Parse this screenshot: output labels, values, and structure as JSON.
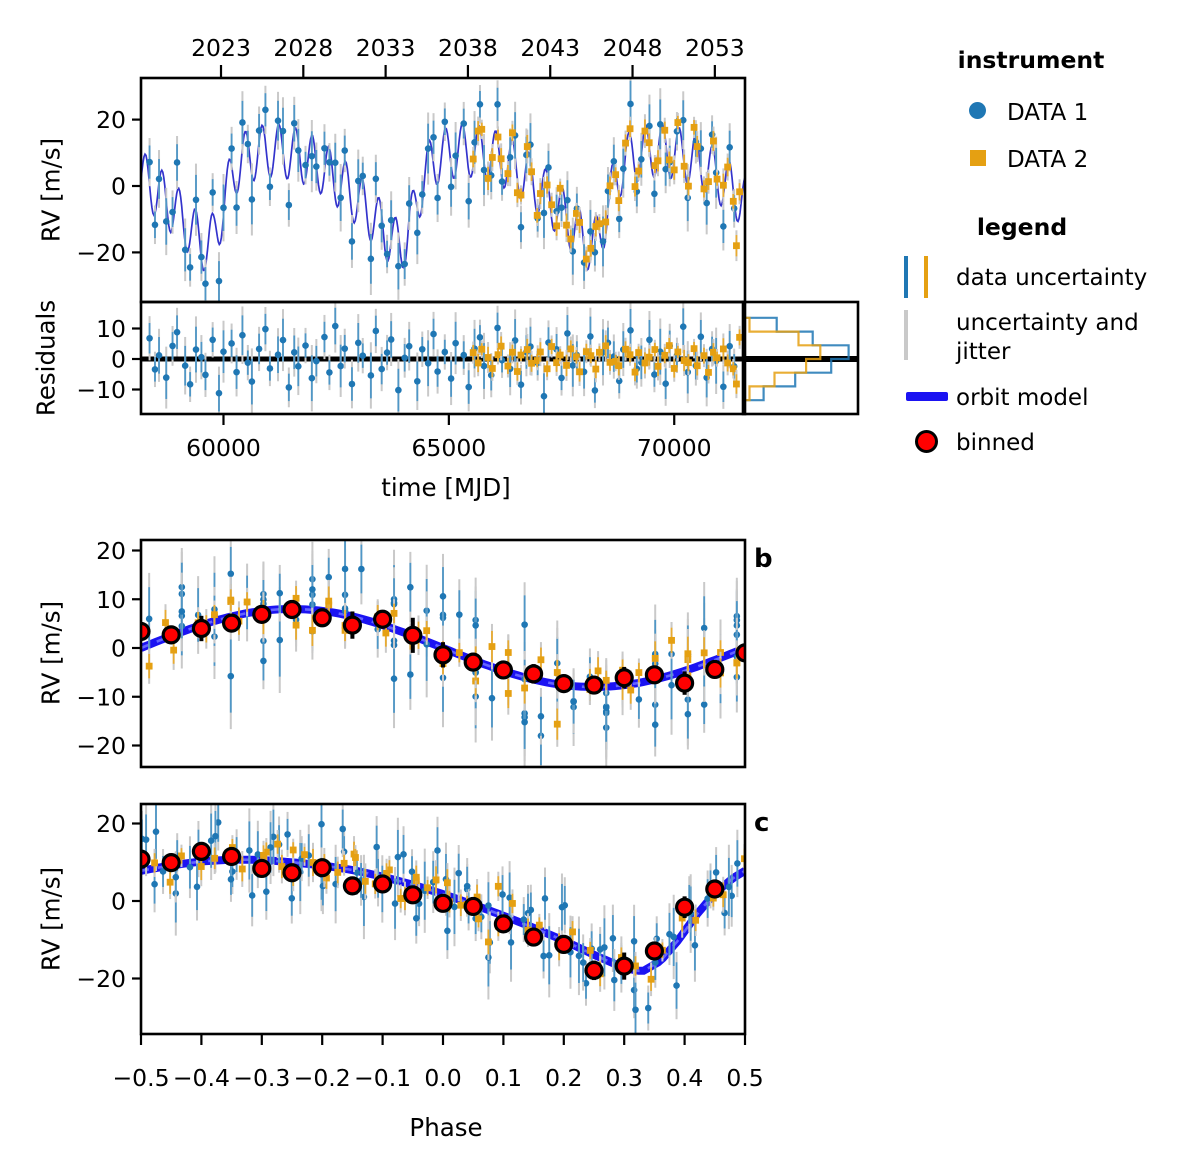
{
  "colors": {
    "data1": "#1f77b4",
    "data1_bar": "#4f97c7",
    "data2": "#e5a012",
    "data2_bar": "#e9ab30",
    "jitter": "#c9c9c9",
    "model_line": "#3333cc",
    "model_thick": "#1b13f2",
    "model_dash": "#6464ff",
    "binned_fill": "#ff0000",
    "binned_edge": "#000000",
    "zero_line": "#000000"
  },
  "legend": {
    "instrument_title": "instrument",
    "instruments": [
      {
        "label": "DATA 1",
        "marker": "circle",
        "color": "#1f77b4"
      },
      {
        "label": "DATA 2",
        "marker": "square",
        "color": "#e5a012"
      }
    ],
    "legend_title": "legend",
    "entries": [
      {
        "label": "data uncertainty",
        "symbol": "two-vertical-bars"
      },
      {
        "label": "uncertainty and jitter",
        "symbol": "gray-vertical-bar"
      },
      {
        "label": "orbit model",
        "symbol": "thick-blue-line"
      },
      {
        "label": "binned",
        "symbol": "red-circle"
      }
    ]
  },
  "chart_data": [
    {
      "id": "a",
      "type": "scatter",
      "description": "RV time series with orbit model",
      "ylabel": "RV [m/s]",
      "xlim": [
        58170,
        71570
      ],
      "ylim": [
        -34.9,
        32.5
      ],
      "y_ticks": [
        20,
        0,
        -20
      ],
      "y_tick_labels": [
        "20",
        "0",
        "−20"
      ],
      "top_axis": {
        "labels": [
          "2023",
          "2028",
          "2033",
          "2038",
          "2043",
          "2048",
          "2053"
        ],
        "mjd": [
          59945,
          61771,
          63597,
          65423,
          67249,
          69075,
          70901
        ]
      },
      "model": {
        "short_period": 370,
        "short_amplitude": 8,
        "short_t0": 58360,
        "long_period": 4270,
        "long_t0": 58249,
        "long_shape": [
          [
            -0.5,
            7.8
          ],
          [
            -0.45,
            9.2
          ],
          [
            -0.4,
            10.2
          ],
          [
            -0.35,
            10.7
          ],
          [
            -0.3,
            10.6
          ],
          [
            -0.25,
            10.0
          ],
          [
            -0.2,
            9.2
          ],
          [
            -0.15,
            8.0
          ],
          [
            -0.1,
            6.3
          ],
          [
            -0.05,
            4.2
          ],
          [
            0.0,
            1.8
          ],
          [
            0.05,
            -0.9
          ],
          [
            0.1,
            -3.8
          ],
          [
            0.15,
            -6.9
          ],
          [
            0.2,
            -10.2
          ],
          [
            0.25,
            -13.9
          ],
          [
            0.3,
            -17.3
          ],
          [
            0.33,
            -18.2
          ],
          [
            0.36,
            -15.5
          ],
          [
            0.39,
            -10.0
          ],
          [
            0.42,
            -3.5
          ],
          [
            0.45,
            2.0
          ],
          [
            0.48,
            5.9
          ],
          [
            0.5,
            7.8
          ]
        ]
      },
      "series": [
        {
          "name": "DATA 1",
          "marker": "circle",
          "t": [
            58360,
            58480,
            58570,
            58730,
            58870,
            58970,
            59150,
            59260,
            59390,
            59510,
            59600,
            59760,
            59900,
            60000,
            60180,
            60290,
            60420,
            60540,
            60630,
            60790,
            60930,
            61030,
            61210,
            61320,
            61450,
            61570,
            61660,
            61820,
            61960,
            62060,
            62240,
            62350,
            62480,
            62600,
            62690,
            62850,
            62990,
            63090,
            63270,
            63380,
            63510,
            63630,
            63720,
            63880,
            64020,
            64120,
            64300,
            64410,
            64540,
            64660,
            64750,
            64910,
            65050,
            65150,
            65330,
            65440,
            65570,
            65690,
            65780,
            65940,
            66080,
            66180,
            66360,
            66470,
            66600,
            66720,
            66810,
            66970,
            67110,
            67210,
            67390,
            67500,
            67630,
            67750,
            67840,
            68000,
            68140,
            68240,
            68420,
            68530,
            68660,
            68780,
            68870,
            69030,
            69170,
            69270,
            69450,
            69560,
            69690,
            69810,
            69900,
            70060,
            70200,
            70300,
            70480,
            70590,
            70720,
            70840,
            70930,
            71090,
            71230,
            71330
          ],
          "resid": [
            6.8,
            -3.4,
            1.2,
            -6.1,
            4.3,
            8.8,
            -2.2,
            -8.3,
            3.1,
            0.6,
            -5.2,
            6.3,
            -11.2,
            2.4,
            5.1,
            -4.3,
            7.8,
            -1.2,
            -7.4,
            3.3,
            9.8,
            -3.1,
            1.4,
            6.2,
            -9.3,
            2.2,
            -2.4,
            4.4,
            -6.3,
            -0.7,
            7.2,
            -4.4,
            10.8,
            -2.3,
            3.4,
            -8.2,
            5.3,
            1.1,
            -5.4,
            9.2,
            -3.3,
            2.1,
            6.4,
            -10.2,
            0.4,
            4.2,
            -7.3,
            3.2,
            -1.4,
            8.2,
            -4.1,
            2.3,
            -6.4,
            5.2,
            1.3,
            -9.2,
            3.4,
            7.1,
            -2.3,
            -5.3,
            10.2,
            -0.4,
            -3.2,
            6.1,
            -8.4,
            2.3,
            4.1,
            -1.3,
            -12.2,
            5.4,
            3.2,
            -6.2,
            8.4,
            -2.1,
            1.3,
            -4.2,
            7.4,
            -10.3,
            2.2,
            5.3,
            0.8,
            -7.2,
            3.1,
            9.4,
            -3.2,
            -1.1,
            6.3,
            -5.1,
            2.4,
            -8.1,
            4.3,
            1.2,
            10.6,
            -4.3,
            -2.2,
            7.3,
            -6.1,
            3.3,
            -0.6,
            -9.1,
            4.2,
            -2.4
          ],
          "err_cycle": [
            5,
            4,
            6,
            7,
            4.5,
            5.5,
            6.5,
            4,
            7.5,
            5
          ]
        },
        {
          "name": "DATA 2",
          "marker": "square",
          "t": [
            65540,
            65650,
            65730,
            65870,
            65965,
            66090,
            66160,
            66310,
            66410,
            66520,
            66600,
            66740,
            66835,
            66960,
            67030,
            67180,
            67280,
            67390,
            67470,
            67610,
            67705,
            67830,
            67900,
            68050,
            68150,
            68260,
            68340,
            68480,
            68575,
            68700,
            68770,
            68920,
            69020,
            69130,
            69210,
            69350,
            69445,
            69570,
            69640,
            69790,
            69890,
            70000,
            70080,
            70220,
            70315,
            70440,
            70510,
            70660,
            70760,
            70870,
            70950,
            71090,
            71185,
            71310,
            71380,
            71450
          ],
          "resid": [
            2.1,
            -1.3,
            3.2,
            0.5,
            -3.1,
            1.4,
            4.2,
            -2.3,
            2.2,
            -4.1,
            1.3,
            3.1,
            -1.4,
            -0.5,
            2.3,
            -3.2,
            4.1,
            -1.2,
            1.3,
            -2.1,
            3.3,
            0.7,
            -4.2,
            2.4,
            1.1,
            -3.3,
            2.2,
            4.3,
            -1.1,
            -0.8,
            -2.2,
            3.2,
            1.4,
            -4.3,
            2.1,
            -1.3,
            0.6,
            3.1,
            -2.4,
            1.2,
            4.4,
            -3.1,
            2.3,
            -0.5,
            -1.2,
            3.4,
            -2.2,
            1.1,
            -4.4,
            2.2,
            0.4,
            3.3,
            -1.3,
            -3.2,
            -8.2,
            7.1
          ],
          "err_cycle": [
            2.5,
            3,
            2,
            3.5,
            2.8,
            2.2,
            3.2,
            2.6
          ]
        }
      ]
    },
    {
      "id": "r",
      "type": "scatter",
      "description": "Residuals vs time",
      "ylabel": "Residuals",
      "xlabel": "time [MJD]",
      "x_ticks": [
        60000,
        65000,
        70000
      ],
      "x_tick_labels": [
        "60000",
        "65000",
        "70000"
      ],
      "y_ticks": [
        10,
        0,
        -10
      ],
      "y_tick_labels": [
        "10",
        "0",
        "−10"
      ],
      "ylim": [
        -18.0,
        18.7
      ],
      "zero_line": true
    },
    {
      "id": "h",
      "type": "histogram",
      "description": "Residual distribution histogram",
      "orientation": "horizontal",
      "bin_edges": [
        13.5,
        9,
        4.5,
        0,
        -4.5,
        -9,
        -13.5
      ],
      "series": [
        {
          "name": "DATA 1",
          "fractions": [
            0.3,
            0.63,
            0.96,
            0.8,
            0.47,
            0.18
          ]
        },
        {
          "name": "DATA 2",
          "fractions": [
            0.05,
            0.5,
            0.7,
            0.57,
            0.28,
            0.05
          ]
        }
      ],
      "zero_line": true
    },
    {
      "id": "b",
      "type": "scatter",
      "panel_label": "b",
      "description": "Phase-folded RV, short-period planet",
      "ylabel": "RV [m/s]",
      "xlim": [
        -0.5,
        0.5
      ],
      "ylim": [
        -24.4,
        22.2
      ],
      "y_ticks": [
        20,
        10,
        0,
        -10,
        -20
      ],
      "y_tick_labels": [
        "20",
        "10",
        "0",
        "−10",
        "−20"
      ],
      "fold": "short",
      "binned": {
        "phase": [
          -0.5,
          -0.45,
          -0.4,
          -0.35,
          -0.3,
          -0.25,
          -0.2,
          -0.15,
          -0.1,
          -0.05,
          0.0,
          0.05,
          0.1,
          0.15,
          0.2,
          0.25,
          0.3,
          0.35,
          0.4,
          0.45,
          0.5
        ],
        "rv": [
          3.4,
          2.7,
          4.0,
          5.1,
          6.9,
          7.9,
          6.2,
          4.7,
          5.9,
          2.6,
          -1.4,
          -2.9,
          -4.5,
          -5.3,
          -7.3,
          -7.6,
          -6.1,
          -5.5,
          -7.2,
          -4.4,
          -1.0
        ],
        "err": [
          1.2,
          1.2,
          2.6,
          1.2,
          1.2,
          1.2,
          1.2,
          2.8,
          1.2,
          3.6,
          2.6,
          1.2,
          1.2,
          2.0,
          1.2,
          1.2,
          2.2,
          1.2,
          2.4,
          1.2,
          1.2
        ]
      }
    },
    {
      "id": "c",
      "type": "scatter",
      "panel_label": "c",
      "description": "Phase-folded RV, long-period planet",
      "ylabel": "RV [m/s]",
      "xlabel": "Phase",
      "xlim": [
        -0.5,
        0.5
      ],
      "ylim": [
        -34.3,
        25.0
      ],
      "y_ticks": [
        20,
        0,
        -20
      ],
      "y_tick_labels": [
        "20",
        "0",
        "−20"
      ],
      "x_ticks": [
        -0.5,
        -0.4,
        -0.3,
        -0.2,
        -0.1,
        0.0,
        0.1,
        0.2,
        0.3,
        0.4,
        0.5
      ],
      "x_tick_labels": [
        "−0.5",
        "−0.4",
        "−0.3",
        "−0.2",
        "−0.1",
        "0.0",
        "0.1",
        "0.2",
        "0.3",
        "0.4",
        "0.5"
      ],
      "fold": "long",
      "binned": {
        "phase": [
          -0.5,
          -0.45,
          -0.4,
          -0.35,
          -0.3,
          -0.25,
          -0.2,
          -0.15,
          -0.1,
          -0.05,
          0.0,
          0.05,
          0.1,
          0.15,
          0.2,
          0.25,
          0.3,
          0.35,
          0.4,
          0.45
        ],
        "rv": [
          10.8,
          9.9,
          12.8,
          11.5,
          8.4,
          7.3,
          8.6,
          3.9,
          4.4,
          1.6,
          -0.6,
          -1.4,
          -5.9,
          -9.3,
          -11.2,
          -17.9,
          -16.8,
          -12.9,
          -1.6,
          3.1
        ],
        "err": [
          1.5,
          1.2,
          2.3,
          1.8,
          1.2,
          1.5,
          1.2,
          1.8,
          1.2,
          1.2,
          1.2,
          1.5,
          1.2,
          2.0,
          2.0,
          2.5,
          3.5,
          2.0,
          2.8,
          2.0
        ]
      }
    }
  ]
}
